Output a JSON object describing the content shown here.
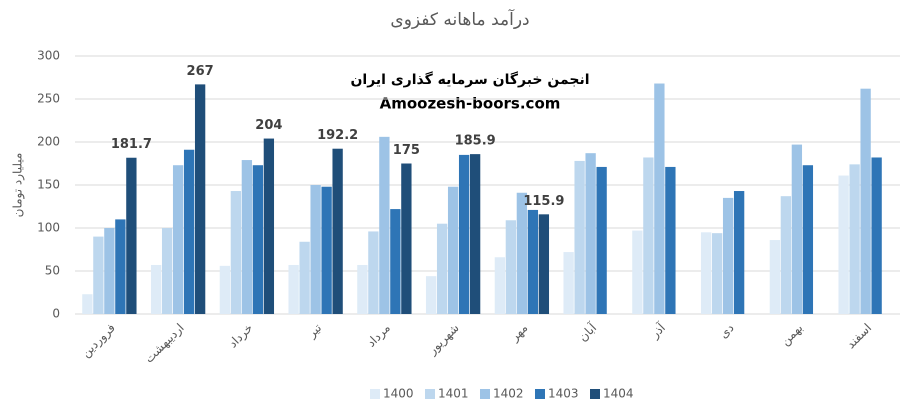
{
  "chart_data": {
    "type": "bar",
    "title": "درآمد ماهانه کفزوی",
    "y_label": "میلیارد تومان",
    "annotations": [
      "انجمن خبرگان سرمایه گذاری ایران",
      "Amoozesh-boors.com"
    ],
    "categories": [
      "فروردین",
      "اردیبهشت",
      "خرداد",
      "تیر",
      "مرداد",
      "شهریور",
      "مهر",
      "آبان",
      "آذر",
      "دی",
      "بهمن",
      "اسفند"
    ],
    "series": [
      {
        "name": "1400",
        "color": "#deebf7",
        "values": [
          23,
          57,
          56,
          57,
          57,
          44,
          66,
          72,
          97,
          95,
          86,
          161
        ]
      },
      {
        "name": "1401",
        "color": "#bdd7ee",
        "values": [
          90,
          100,
          143,
          84,
          96,
          105,
          109,
          178,
          182,
          94,
          137,
          174
        ]
      },
      {
        "name": "1402",
        "color": "#9dc3e6",
        "values": [
          100,
          173,
          179,
          150,
          206,
          148,
          141,
          187,
          268,
          135,
          197,
          262
        ]
      },
      {
        "name": "1403",
        "color": "#2e75b6",
        "values": [
          110,
          191,
          173,
          148,
          122,
          185,
          121,
          171,
          171,
          143,
          173,
          182
        ]
      },
      {
        "name": "1404",
        "color": "#1f4e79",
        "data_labels": true,
        "values": [
          181.7,
          267,
          204,
          192.2,
          175,
          185.9,
          115.9,
          null,
          null,
          null,
          null,
          null
        ]
      }
    ],
    "ylim": [
      0,
      300
    ],
    "yticks": [
      0,
      50,
      100,
      150,
      200,
      250,
      300
    ],
    "grid": true,
    "legend": "bottom"
  }
}
